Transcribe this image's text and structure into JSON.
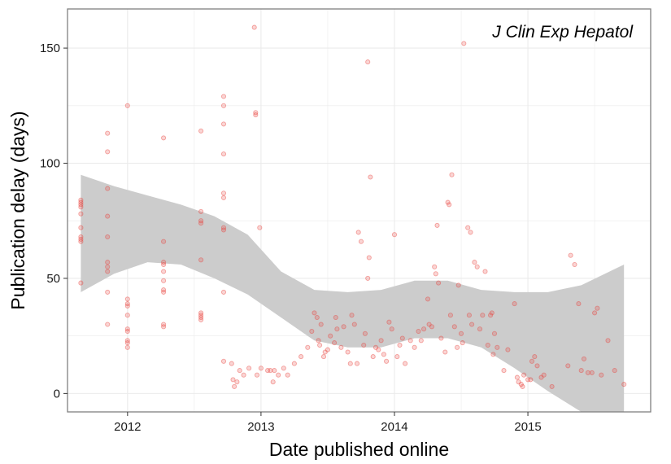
{
  "chart_data": {
    "type": "scatter",
    "annotation": "J Clin Exp Hepatol",
    "xlabel": "Date published online",
    "ylabel": "Publication delay (days)",
    "xlim": [
      2011.55,
      2015.92
    ],
    "ylim": [
      -8,
      167
    ],
    "x_ticks": [
      2012,
      2013,
      2014,
      2015
    ],
    "x_tick_labels": [
      "2012",
      "2013",
      "2014",
      "2015"
    ],
    "y_ticks": [
      0,
      50,
      100,
      150
    ],
    "y_tick_labels": [
      "0",
      "50",
      "100",
      "150"
    ],
    "grid": true,
    "colors": {
      "points": "#e8423b",
      "ribbon": "#cccccc",
      "panel_border": "#808080",
      "grid": "#ebebeb"
    },
    "points": [
      [
        2011.65,
        84
      ],
      [
        2011.65,
        83
      ],
      [
        2011.65,
        82
      ],
      [
        2011.65,
        81
      ],
      [
        2011.65,
        78
      ],
      [
        2011.65,
        72
      ],
      [
        2011.65,
        68
      ],
      [
        2011.65,
        67
      ],
      [
        2011.65,
        66
      ],
      [
        2011.65,
        48
      ],
      [
        2011.85,
        113
      ],
      [
        2011.85,
        105
      ],
      [
        2011.85,
        89
      ],
      [
        2011.85,
        77
      ],
      [
        2011.85,
        68
      ],
      [
        2011.85,
        57
      ],
      [
        2011.85,
        55
      ],
      [
        2011.85,
        53
      ],
      [
        2011.85,
        44
      ],
      [
        2011.85,
        30
      ],
      [
        2012.0,
        125
      ],
      [
        2012.0,
        41
      ],
      [
        2012.0,
        39
      ],
      [
        2012.0,
        38
      ],
      [
        2012.0,
        34
      ],
      [
        2012.0,
        28
      ],
      [
        2012.0,
        27
      ],
      [
        2012.0,
        23
      ],
      [
        2012.0,
        22
      ],
      [
        2012.0,
        20
      ],
      [
        2012.27,
        111
      ],
      [
        2012.27,
        66
      ],
      [
        2012.27,
        57
      ],
      [
        2012.27,
        56
      ],
      [
        2012.27,
        53
      ],
      [
        2012.27,
        49
      ],
      [
        2012.27,
        45
      ],
      [
        2012.27,
        44
      ],
      [
        2012.27,
        30
      ],
      [
        2012.27,
        29
      ],
      [
        2012.55,
        114
      ],
      [
        2012.55,
        79
      ],
      [
        2012.55,
        75
      ],
      [
        2012.55,
        74
      ],
      [
        2012.55,
        58
      ],
      [
        2012.55,
        35
      ],
      [
        2012.55,
        34
      ],
      [
        2012.55,
        33
      ],
      [
        2012.55,
        32
      ],
      [
        2012.72,
        129
      ],
      [
        2012.72,
        125
      ],
      [
        2012.72,
        117
      ],
      [
        2012.72,
        104
      ],
      [
        2012.72,
        87
      ],
      [
        2012.72,
        85
      ],
      [
        2012.72,
        72
      ],
      [
        2012.72,
        71
      ],
      [
        2012.72,
        44
      ],
      [
        2012.72,
        14
      ],
      [
        2012.78,
        13
      ],
      [
        2012.79,
        6
      ],
      [
        2012.8,
        3
      ],
      [
        2012.82,
        5
      ],
      [
        2012.84,
        10
      ],
      [
        2012.87,
        8
      ],
      [
        2012.91,
        11
      ],
      [
        2012.95,
        159
      ],
      [
        2012.96,
        122
      ],
      [
        2012.96,
        121
      ],
      [
        2012.97,
        8
      ],
      [
        2012.99,
        72
      ],
      [
        2013.0,
        11
      ],
      [
        2013.05,
        10
      ],
      [
        2013.07,
        10
      ],
      [
        2013.09,
        5
      ],
      [
        2013.1,
        10
      ],
      [
        2013.13,
        8
      ],
      [
        2013.17,
        11
      ],
      [
        2013.2,
        8
      ],
      [
        2013.25,
        13
      ],
      [
        2013.3,
        16
      ],
      [
        2013.35,
        20
      ],
      [
        2013.38,
        27
      ],
      [
        2013.4,
        35
      ],
      [
        2013.42,
        33
      ],
      [
        2013.43,
        23
      ],
      [
        2013.44,
        21
      ],
      [
        2013.45,
        30
      ],
      [
        2013.47,
        16
      ],
      [
        2013.48,
        18
      ],
      [
        2013.5,
        19
      ],
      [
        2013.52,
        25
      ],
      [
        2013.55,
        22
      ],
      [
        2013.56,
        33
      ],
      [
        2013.57,
        28
      ],
      [
        2013.6,
        20
      ],
      [
        2013.62,
        29
      ],
      [
        2013.65,
        18
      ],
      [
        2013.67,
        13
      ],
      [
        2013.68,
        34
      ],
      [
        2013.7,
        30
      ],
      [
        2013.72,
        13
      ],
      [
        2013.73,
        70
      ],
      [
        2013.75,
        66
      ],
      [
        2013.77,
        21
      ],
      [
        2013.78,
        26
      ],
      [
        2013.8,
        50
      ],
      [
        2013.8,
        144
      ],
      [
        2013.81,
        59
      ],
      [
        2013.82,
        94
      ],
      [
        2013.84,
        16
      ],
      [
        2013.86,
        20
      ],
      [
        2013.88,
        19
      ],
      [
        2013.9,
        23
      ],
      [
        2013.92,
        17
      ],
      [
        2013.94,
        14
      ],
      [
        2013.96,
        31
      ],
      [
        2013.98,
        28
      ],
      [
        2014.0,
        69
      ],
      [
        2014.02,
        16
      ],
      [
        2014.04,
        21
      ],
      [
        2014.06,
        24
      ],
      [
        2014.08,
        13
      ],
      [
        2014.12,
        23
      ],
      [
        2014.15,
        20
      ],
      [
        2014.18,
        27
      ],
      [
        2014.2,
        23
      ],
      [
        2014.22,
        28
      ],
      [
        2014.25,
        41
      ],
      [
        2014.26,
        30
      ],
      [
        2014.28,
        29
      ],
      [
        2014.3,
        55
      ],
      [
        2014.31,
        52
      ],
      [
        2014.32,
        73
      ],
      [
        2014.33,
        48
      ],
      [
        2014.35,
        24
      ],
      [
        2014.38,
        18
      ],
      [
        2014.4,
        83
      ],
      [
        2014.41,
        82
      ],
      [
        2014.42,
        34
      ],
      [
        2014.43,
        95
      ],
      [
        2014.45,
        29
      ],
      [
        2014.47,
        20
      ],
      [
        2014.48,
        47
      ],
      [
        2014.5,
        26
      ],
      [
        2014.51,
        22
      ],
      [
        2014.52,
        152
      ],
      [
        2014.55,
        72
      ],
      [
        2014.56,
        34
      ],
      [
        2014.57,
        70
      ],
      [
        2014.58,
        30
      ],
      [
        2014.6,
        57
      ],
      [
        2014.62,
        55
      ],
      [
        2014.64,
        28
      ],
      [
        2014.66,
        34
      ],
      [
        2014.68,
        53
      ],
      [
        2014.7,
        21
      ],
      [
        2014.72,
        34
      ],
      [
        2014.73,
        35
      ],
      [
        2014.74,
        17
      ],
      [
        2014.75,
        26
      ],
      [
        2014.77,
        20
      ],
      [
        2014.82,
        10
      ],
      [
        2014.85,
        19
      ],
      [
        2014.9,
        39
      ],
      [
        2014.92,
        7
      ],
      [
        2014.93,
        5
      ],
      [
        2014.95,
        4
      ],
      [
        2014.96,
        3
      ],
      [
        2014.97,
        8
      ],
      [
        2015.0,
        6
      ],
      [
        2015.02,
        6
      ],
      [
        2015.03,
        14
      ],
      [
        2015.05,
        16
      ],
      [
        2015.07,
        12
      ],
      [
        2015.1,
        7
      ],
      [
        2015.12,
        8
      ],
      [
        2015.18,
        3
      ],
      [
        2015.3,
        12
      ],
      [
        2015.32,
        60
      ],
      [
        2015.35,
        56
      ],
      [
        2015.38,
        39
      ],
      [
        2015.4,
        10
      ],
      [
        2015.42,
        15
      ],
      [
        2015.45,
        9
      ],
      [
        2015.48,
        9
      ],
      [
        2015.5,
        35
      ],
      [
        2015.52,
        37
      ],
      [
        2015.55,
        8
      ],
      [
        2015.6,
        23
      ],
      [
        2015.65,
        10
      ],
      [
        2015.72,
        4
      ]
    ],
    "smooth": {
      "x": [
        2011.65,
        2011.9,
        2012.15,
        2012.4,
        2012.65,
        2012.9,
        2013.15,
        2013.4,
        2013.65,
        2013.9,
        2014.15,
        2014.4,
        2014.65,
        2014.9,
        2015.15,
        2015.4,
        2015.72
      ],
      "lower": [
        44,
        52,
        57,
        56,
        50,
        43,
        33,
        23,
        20,
        20,
        24,
        24,
        20,
        11,
        1,
        -8,
        -25
      ],
      "upper": [
        95,
        90,
        86,
        82,
        77,
        69,
        53,
        45,
        44,
        45,
        49,
        49,
        45,
        44,
        44,
        47,
        56
      ]
    }
  }
}
